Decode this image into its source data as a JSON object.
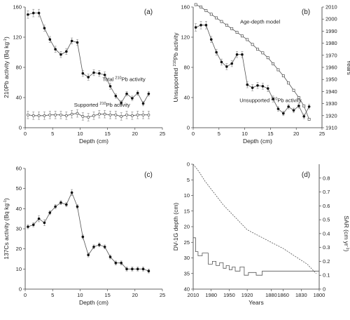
{
  "chart_data": [
    {
      "panel": "(a)",
      "type": "line",
      "xlabel": "Depth (cm)",
      "ylabel": "210Pb activity (Bq kg-1)",
      "xlim": [
        0,
        25
      ],
      "ylim": [
        0,
        160
      ],
      "xticks": [
        0,
        5,
        10,
        15,
        20,
        25
      ],
      "yticks": [
        0,
        40,
        80,
        120,
        160
      ],
      "series": [
        {
          "name": "Total 210Pb activity",
          "x": [
            0.5,
            1.5,
            2.5,
            3.5,
            4.5,
            5.5,
            6.5,
            7.5,
            8.5,
            9.5,
            10.5,
            11.5,
            12.5,
            13.5,
            14.5,
            15.5,
            16.5,
            17.5,
            18.5,
            19.5,
            20.5,
            21.5,
            22.5
          ],
          "y": [
            150,
            152,
            152,
            132,
            117,
            104,
            97,
            101,
            115,
            113,
            72,
            67,
            73,
            72,
            70,
            55,
            42,
            33,
            45,
            39,
            46,
            32,
            45
          ],
          "err": [
            5,
            5,
            5,
            4,
            4,
            4,
            4,
            4,
            4,
            4,
            4,
            4,
            4,
            4,
            4,
            4,
            3,
            3,
            3,
            3,
            3,
            3,
            3
          ],
          "marker": "circle-filled"
        },
        {
          "name": "Supported 210Pb activity",
          "x": [
            0.5,
            1.5,
            2.5,
            3.5,
            4.5,
            5.5,
            6.5,
            7.5,
            8.5,
            9.5,
            10.5,
            11.5,
            12.5,
            13.5,
            14.5,
            15.5,
            16.5,
            17.5,
            18.5,
            19.5,
            20.5,
            21.5,
            22.5
          ],
          "y": [
            17,
            16,
            16,
            16,
            17,
            17,
            17,
            16,
            18,
            19,
            15,
            14,
            16,
            18,
            18,
            17,
            17,
            15,
            17,
            16,
            17,
            17,
            17
          ],
          "err": [
            5,
            5,
            5,
            5,
            5,
            5,
            5,
            5,
            5,
            5,
            5,
            5,
            5,
            5,
            5,
            5,
            5,
            5,
            5,
            5,
            5,
            5,
            5
          ],
          "marker": "circle-open"
        }
      ],
      "annotations": [
        {
          "text": "Total 210Pb activity",
          "at": [
            18,
            62
          ]
        },
        {
          "text": "Supported 210Pb activity",
          "at": [
            14,
            28
          ]
        }
      ]
    },
    {
      "panel": "(b)",
      "type": "line",
      "xlabel": "Depth (cm)",
      "ylabel": "Unsupported 210Pb activity",
      "y2label": "Years",
      "xlim": [
        0,
        25
      ],
      "ylim": [
        0,
        160
      ],
      "y2lim": [
        1910,
        2010
      ],
      "xticks": [
        0,
        5,
        10,
        15,
        20,
        25
      ],
      "yticks": [
        0,
        40,
        80,
        120,
        160
      ],
      "y2ticks": [
        1910,
        1920,
        1930,
        1940,
        1950,
        1960,
        1970,
        1980,
        1990,
        2000,
        2010
      ],
      "series": [
        {
          "name": "Unsupported 210Pb activity",
          "x": [
            0.5,
            1.5,
            2.5,
            3.5,
            4.5,
            5.5,
            6.5,
            7.5,
            8.5,
            9.5,
            10.5,
            11.5,
            12.5,
            13.5,
            14.5,
            15.5,
            16.5,
            17.5,
            18.5,
            19.5,
            20.5,
            21.5,
            22.5
          ],
          "y": [
            133,
            136,
            136,
            117,
            100,
            87,
            81,
            85,
            97,
            97,
            57,
            53,
            56,
            55,
            52,
            38,
            25,
            19,
            28,
            23,
            29,
            15,
            28
          ],
          "err": [
            5,
            5,
            5,
            4,
            4,
            4,
            4,
            4,
            4,
            4,
            4,
            4,
            4,
            4,
            4,
            4,
            3,
            3,
            3,
            3,
            3,
            3,
            3
          ],
          "marker": "circle-filled",
          "axis": "left"
        },
        {
          "name": "Age-depth model",
          "x": [
            0.5,
            1.5,
            2.5,
            3.5,
            4.5,
            5.5,
            6.5,
            7.5,
            8.5,
            9.5,
            10.5,
            11.5,
            12.5,
            13.5,
            14.5,
            15.5,
            16.5,
            17.5,
            18.5,
            19.5,
            20.5,
            21.5,
            22.5
          ],
          "y": [
            2012,
            2010,
            2007,
            2004,
            2001,
            1998,
            1995,
            1992,
            1989,
            1986,
            1983,
            1979,
            1975,
            1972,
            1968,
            1963,
            1958,
            1953,
            1947,
            1941,
            1935,
            1928,
            1917
          ],
          "marker": "square-open",
          "axis": "right"
        }
      ],
      "annotations": [
        {
          "text": "Age-depth model",
          "at": [
            13,
            138
          ]
        },
        {
          "text": "Unsupported 210Pb activity",
          "at": [
            15,
            34
          ]
        }
      ]
    },
    {
      "panel": "(c)",
      "type": "line",
      "xlabel": "Depth (cm)",
      "ylabel": "137Cs activity (Bq kg-1)",
      "xlim": [
        0,
        25
      ],
      "ylim": [
        0,
        60
      ],
      "xticks": [
        0,
        5,
        10,
        15,
        20,
        25
      ],
      "yticks": [
        0,
        10,
        20,
        30,
        40,
        50,
        60
      ],
      "series": [
        {
          "name": "137Cs activity",
          "x": [
            0.5,
            1.5,
            2.5,
            3.5,
            4.5,
            5.5,
            6.5,
            7.5,
            8.5,
            9.5,
            10.5,
            11.5,
            12.5,
            13.5,
            14.5,
            15.5,
            16.5,
            17.5,
            18.5,
            19.5,
            20.5,
            21.5,
            22.5
          ],
          "y": [
            31,
            32,
            35,
            33,
            38,
            41,
            43,
            42,
            48,
            41,
            26,
            17,
            21,
            22,
            21,
            16,
            13,
            13,
            10,
            10,
            10,
            10,
            9
          ],
          "err": [
            1,
            1,
            1.5,
            1.5,
            1,
            1,
            1,
            1,
            1.5,
            1,
            1,
            1,
            1,
            1,
            1,
            1,
            1,
            1,
            1,
            1,
            1,
            1,
            1
          ],
          "marker": "circle-filled"
        }
      ]
    },
    {
      "panel": "(d)",
      "type": "line",
      "xlabel": "Years",
      "ylabel": "DV-1G depth (cm)",
      "y2label": "SAR (cm yr-1)",
      "xlim": [
        2010,
        1800
      ],
      "ylim": [
        0,
        40
      ],
      "y2lim": [
        0,
        0.9
      ],
      "xticks": [
        2010,
        1980,
        1950,
        1920,
        1880,
        1860,
        1830,
        1800
      ],
      "yticks": [
        0,
        5,
        10,
        15,
        20,
        25,
        30,
        35,
        40
      ],
      "y2ticks": [
        0,
        0.1,
        0.2,
        0.3,
        0.4,
        0.5,
        0.6,
        0.7,
        0.8
      ],
      "series": [
        {
          "name": "Depth (age-depth model)",
          "x": [
            2010,
            2000,
            1990,
            1980,
            1970,
            1960,
            1950,
            1940,
            1930,
            1920,
            1910,
            1900,
            1880,
            1860,
            1840,
            1820,
            1805
          ],
          "y": [
            0,
            2.5,
            5.5,
            8,
            10.5,
            13,
            15,
            17,
            19,
            21,
            22,
            23,
            25,
            27,
            29.5,
            32,
            35
          ],
          "style": "dashed",
          "axis": "left"
        },
        {
          "name": "SAR",
          "x": [
            2010,
            2006,
            2006,
            2002,
            2002,
            1995,
            1995,
            1985,
            1985,
            1978,
            1978,
            1972,
            1972,
            1966,
            1966,
            1960,
            1960,
            1955,
            1955,
            1950,
            1950,
            1945,
            1945,
            1940,
            1940,
            1932,
            1932,
            1925,
            1925,
            1918,
            1918,
            1905,
            1905,
            1895,
            1895,
            1800
          ],
          "y": [
            0.37,
            0.37,
            0.27,
            0.27,
            0.24,
            0.24,
            0.26,
            0.26,
            0.18,
            0.18,
            0.2,
            0.2,
            0.17,
            0.17,
            0.19,
            0.19,
            0.15,
            0.15,
            0.17,
            0.17,
            0.14,
            0.14,
            0.16,
            0.16,
            0.13,
            0.13,
            0.16,
            0.16,
            0.1,
            0.1,
            0.12,
            0.12,
            0.1,
            0.1,
            0.13,
            0.13
          ],
          "style": "step",
          "color": "#4a7ab8",
          "axis": "right"
        }
      ]
    }
  ]
}
